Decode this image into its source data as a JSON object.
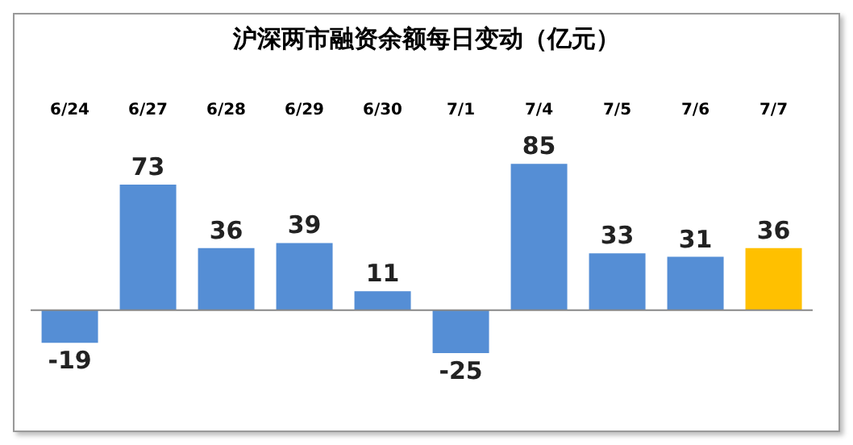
{
  "chart_data": {
    "type": "bar",
    "title": "沪深两市融资余额每日变动（亿元）",
    "categories": [
      "6/24",
      "6/27",
      "6/28",
      "6/29",
      "6/30",
      "7/1",
      "7/4",
      "7/5",
      "7/6",
      "7/7"
    ],
    "values": [
      -19,
      73,
      36,
      39,
      11,
      -25,
      85,
      33,
      31,
      36
    ],
    "colors": [
      "#558ed5",
      "#558ed5",
      "#558ed5",
      "#558ed5",
      "#558ed5",
      "#558ed5",
      "#558ed5",
      "#558ed5",
      "#558ed5",
      "#ffc000"
    ],
    "data_labels": true,
    "legend": false,
    "grid": false
  }
}
